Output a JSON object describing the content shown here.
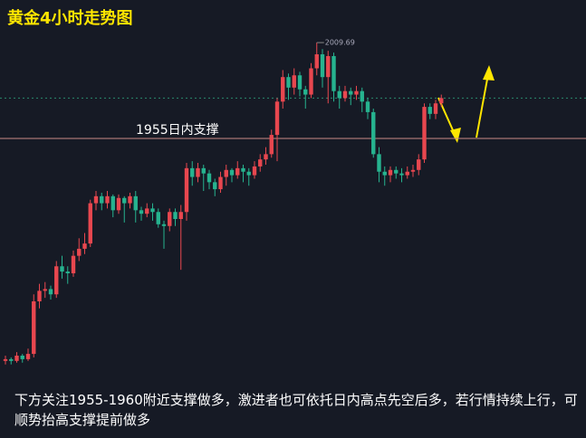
{
  "chart_data": {
    "type": "candlestick",
    "title": "黄金4小时走势图",
    "open": [
      1828,
      1829,
      1828,
      1831,
      1829,
      1832,
      1862,
      1868,
      1869,
      1866,
      1882,
      1879,
      1878,
      1888,
      1892,
      1895,
      1918,
      1922,
      1918,
      1922,
      1914,
      1921,
      1918,
      1922,
      1914,
      1912,
      1915,
      1913,
      1906,
      1905,
      1913,
      1909,
      1913,
      1938,
      1933,
      1938,
      1935,
      1930,
      1926,
      1933,
      1937,
      1934,
      1938,
      1936,
      1934,
      1939,
      1943,
      1946,
      1957,
      1976,
      1990,
      1984,
      1991,
      1983,
      1980,
      1995,
      2003,
      1990,
      2002,
      1982,
      1978,
      1982,
      1980,
      1982,
      1976,
      1970,
      1946,
      1936,
      1934,
      1937,
      1935,
      1934,
      1936,
      1937,
      1943,
      1973,
      1969,
      1975
    ],
    "high": [
      1831,
      1830,
      1833,
      1832,
      1835,
      1866,
      1872,
      1873,
      1871,
      1885,
      1888,
      1882,
      1891,
      1898,
      1901,
      1920,
      1925,
      1924,
      1925,
      1923,
      1923,
      1922,
      1924,
      1925,
      1916,
      1918,
      1918,
      1915,
      1908,
      1915,
      1915,
      1917,
      1941,
      1942,
      1941,
      1940,
      1937,
      1932,
      1936,
      1940,
      1938,
      1942,
      1940,
      1938,
      1942,
      1946,
      1950,
      1960,
      1978,
      1994,
      1992,
      1995,
      1993,
      1985,
      1998,
      2009.69,
      2006,
      2005,
      2004,
      1985,
      1985,
      1984,
      1985,
      1984,
      1978,
      1972,
      1950,
      1939,
      1939,
      1939,
      1938,
      1939,
      1940,
      1946,
      1975,
      1975,
      1977,
      1980
    ],
    "low": [
      1826,
      1826,
      1827,
      1827,
      1828,
      1830,
      1858,
      1864,
      1863,
      1864,
      1875,
      1872,
      1876,
      1885,
      1889,
      1893,
      1914,
      1914,
      1915,
      1910,
      1912,
      1907,
      1915,
      1907,
      1908,
      1910,
      1908,
      1904,
      1892,
      1902,
      1905,
      1880,
      1908,
      1928,
      1930,
      1925,
      1926,
      1922,
      1924,
      1928,
      1930,
      1932,
      1930,
      1928,
      1932,
      1936,
      1940,
      1944,
      1942,
      1972,
      1977,
      1980,
      1979,
      1972,
      1978,
      1991,
      1984,
      1975,
      1976,
      1972,
      1976,
      1974,
      1977,
      1970,
      1966,
      1944,
      1930,
      1928,
      1930,
      1932,
      1930,
      1932,
      1933,
      1934,
      1941,
      1966,
      1966,
      1973
    ],
    "close": [
      1829,
      1828,
      1831,
      1829,
      1832,
      1862,
      1868,
      1869,
      1866,
      1882,
      1879,
      1878,
      1888,
      1892,
      1895,
      1918,
      1922,
      1918,
      1922,
      1914,
      1921,
      1918,
      1922,
      1914,
      1912,
      1915,
      1913,
      1906,
      1905,
      1913,
      1909,
      1913,
      1938,
      1933,
      1938,
      1935,
      1930,
      1926,
      1933,
      1937,
      1934,
      1938,
      1936,
      1934,
      1939,
      1943,
      1946,
      1957,
      1976,
      1990,
      1984,
      1991,
      1983,
      1980,
      1995,
      2003,
      1990,
      2002,
      1982,
      1978,
      1982,
      1980,
      1982,
      1976,
      1970,
      1946,
      1936,
      1934,
      1937,
      1935,
      1934,
      1936,
      1937,
      1943,
      1973,
      1969,
      1975,
      1978
    ],
    "up_color": "#e8474f",
    "down_color": "#26b38f",
    "ylim": [
      1784,
      2034
    ],
    "high_label": 2009.69,
    "support": {
      "value": 1955,
      "label": "1955日内支撑"
    },
    "annotation": "下方关注1955-1960附近支撑做多，激进者也可依托日内高点先空后多，若行情持续上行，可顺势抬高支撑提前做多"
  }
}
